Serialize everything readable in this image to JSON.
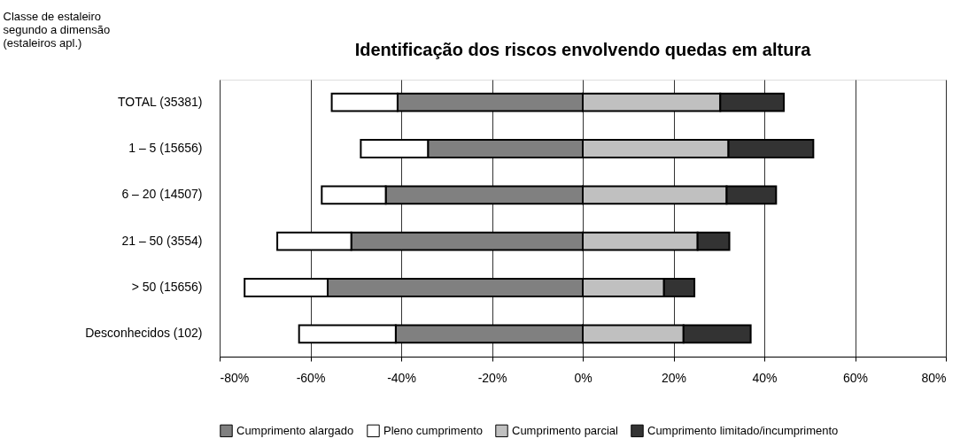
{
  "chart_data": {
    "type": "bar",
    "orientation": "horizontal",
    "stacked": true,
    "title": "Identificação dos riscos envolvendo quedas em altura",
    "ylabel": "Classe de estaleiro\nsegundo a dimensão\n(estaleiros apl.)",
    "categories": [
      "TOTAL (35381)",
      "1 – 5 (15656)",
      "6 – 20 (14507)",
      "21 – 50 (3554)",
      "> 50 (15656)",
      "Desconhecidos (102)"
    ],
    "series": [
      {
        "name": "Cumprimento alargado",
        "color": "#808080",
        "values": [
          -40.8,
          -34.1,
          -43.4,
          -51.0,
          -56.2,
          -41.2
        ]
      },
      {
        "name": "Pleno cumprimento",
        "color": "#ffffff",
        "values": [
          -14.5,
          -14.8,
          -14.1,
          -16.3,
          -18.3,
          -21.3
        ]
      },
      {
        "name": "Cumprimento parcial",
        "color": "#c0c0c0",
        "values": [
          30.3,
          32.1,
          31.7,
          25.3,
          17.9,
          22.2
        ]
      },
      {
        "name": "Cumprimento limitado/incumprimento",
        "color": "#333333",
        "values": [
          14.0,
          18.7,
          10.9,
          7.0,
          6.7,
          14.8
        ]
      }
    ],
    "xlim": [
      -80,
      80
    ],
    "xticks": [
      {
        "value": -80,
        "label": "-80%"
      },
      {
        "value": -60,
        "label": "-60%"
      },
      {
        "value": -40,
        "label": "-40%"
      },
      {
        "value": -20,
        "label": "-20%"
      },
      {
        "value": 0,
        "label": "0%"
      },
      {
        "value": 20,
        "label": "20%"
      },
      {
        "value": 40,
        "label": "40%"
      },
      {
        "value": 60,
        "label": "60%"
      },
      {
        "value": 80,
        "label": "80%"
      }
    ],
    "grid": "x",
    "legend": "bottom"
  }
}
